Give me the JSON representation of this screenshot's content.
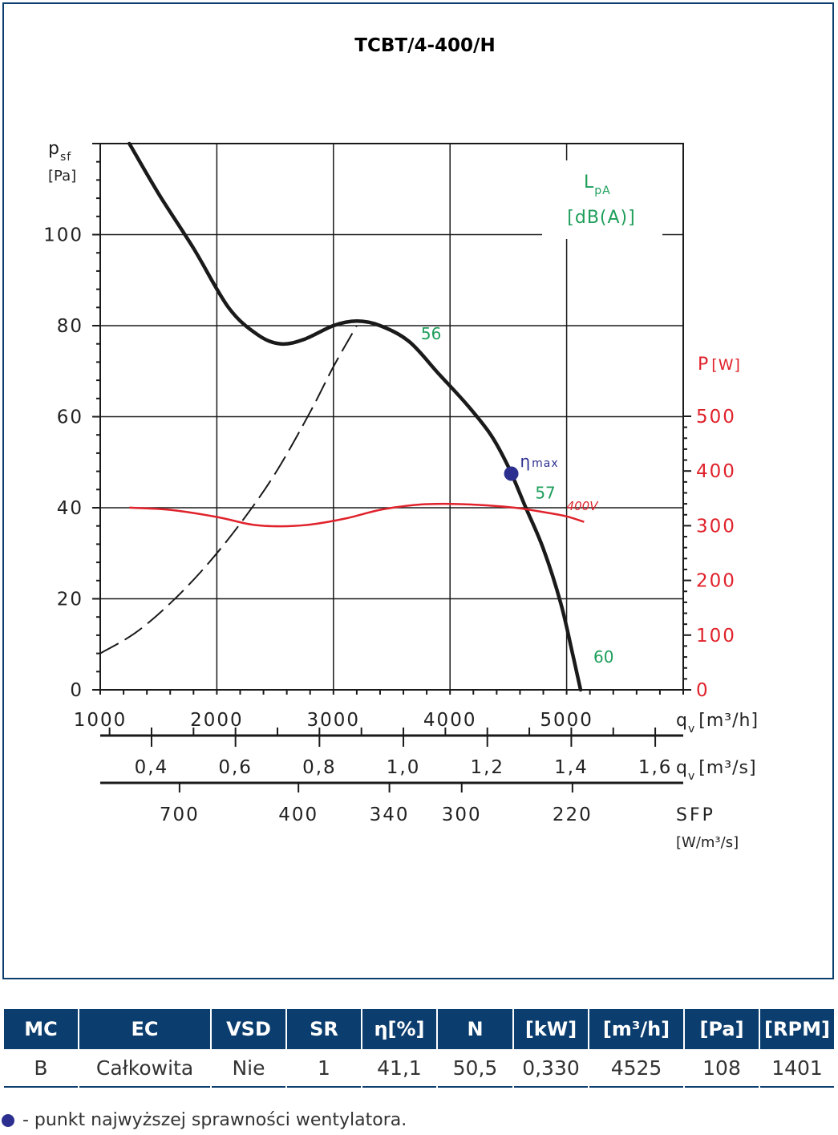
{
  "chart_data": {
    "type": "line",
    "title": "TCBT/4-400/H",
    "left_axis": {
      "label": "p",
      "label_sub": "sf",
      "unit": "[Pa]",
      "ticks": [
        0,
        20,
        40,
        60,
        80,
        100
      ],
      "ylim": [
        0,
        120
      ]
    },
    "right_axis": {
      "label": "P",
      "unit": "[W]",
      "ticks": [
        0,
        100,
        200,
        300,
        400,
        500
      ],
      "ylim": [
        0,
        500
      ],
      "color": "#e0222b"
    },
    "x_axis": {
      "label": "q",
      "label_sub": "v",
      "unit": "[m³/h]",
      "ticks": [
        1000,
        2000,
        3000,
        4000,
        5000
      ],
      "xlim": [
        1000,
        6000
      ]
    },
    "x_axis_2": {
      "label": "q",
      "label_sub": "v",
      "unit": "[m³/s]",
      "ticks": [
        "0,4",
        "0,6",
        "0,8",
        "1,0",
        "1,2",
        "1,4",
        "1,6"
      ],
      "tick_values": [
        0.4,
        0.6,
        0.8,
        1.0,
        1.2,
        1.4,
        1.6
      ]
    },
    "sfp_axis": {
      "label": "SFP",
      "unit": "[W/m³/s]",
      "ticks": [
        "700",
        "400",
        "340",
        "300",
        "220"
      ],
      "tick_positions_m3h": [
        1680,
        2700,
        3480,
        4100,
        5050
      ]
    },
    "noise_label": {
      "label": "L",
      "label_sub": "pA",
      "unit": "[dB(A)]",
      "color": "#1e9e5a"
    },
    "series": [
      {
        "name": "p_sf",
        "color": "#1a1a1a",
        "x": [
          1250,
          1500,
          1800,
          2100,
          2350,
          2550,
          2750,
          3000,
          3200,
          3400,
          3650,
          3900,
          4150,
          4350,
          4500,
          4650,
          4800,
          4950,
          5050,
          5120
        ],
        "y": [
          120,
          109,
          97,
          84,
          78,
          76,
          77,
          80,
          81,
          80,
          76.5,
          69.5,
          62.5,
          56,
          49,
          40,
          31,
          19,
          8,
          0
        ]
      },
      {
        "name": "P",
        "color": "#e0222b",
        "axis": "right",
        "x": [
          1250,
          1600,
          2000,
          2300,
          2550,
          2800,
          3100,
          3400,
          3700,
          3950,
          4250,
          4550,
          4800,
          5000,
          5150
        ],
        "y": [
          333,
          329,
          316,
          302,
          299,
          302,
          313,
          329,
          338,
          340,
          338,
          333,
          325,
          317,
          307
        ]
      },
      {
        "name": "system",
        "color": "#1a1a1a",
        "dashed": true,
        "x": [
          1000,
          1300,
          1600,
          1900,
          2200,
          2500,
          2800,
          3000,
          3200
        ],
        "y": [
          8,
          12.5,
          19,
          27,
          36.5,
          47.5,
          61,
          71,
          80
        ]
      }
    ],
    "annotations": [
      {
        "text": "56",
        "x": 3750,
        "y": 77,
        "color": "#1e9e5a"
      },
      {
        "text": "57",
        "x": 4730,
        "y": 42,
        "color": "#1e9e5a"
      },
      {
        "text": "60",
        "x": 5230,
        "y": 6,
        "color": "#1e9e5a"
      },
      {
        "text": "400V",
        "x": 5000,
        "y": 39.5,
        "color": "#e0222b"
      },
      {
        "text": "η",
        "sub": "max",
        "x": 4600,
        "y": 49,
        "color": "#2c2f8f"
      }
    ],
    "eta_max_point": {
      "x": 4525,
      "y": 47.5,
      "color": "#2c2f8f"
    },
    "grid": true
  },
  "table": {
    "headers": [
      "MC",
      "EC",
      "VSD",
      "SR",
      "η[%]",
      "N",
      "[kW]",
      "[m³/h]",
      "[Pa]",
      "[RPM]"
    ],
    "row": [
      "B",
      "Całkowita",
      "Nie",
      "1",
      "41,1",
      "50,5",
      "0,330",
      "4525",
      "108",
      "1401"
    ]
  },
  "footnote": "- punkt najwyższej sprawności wentylatora."
}
